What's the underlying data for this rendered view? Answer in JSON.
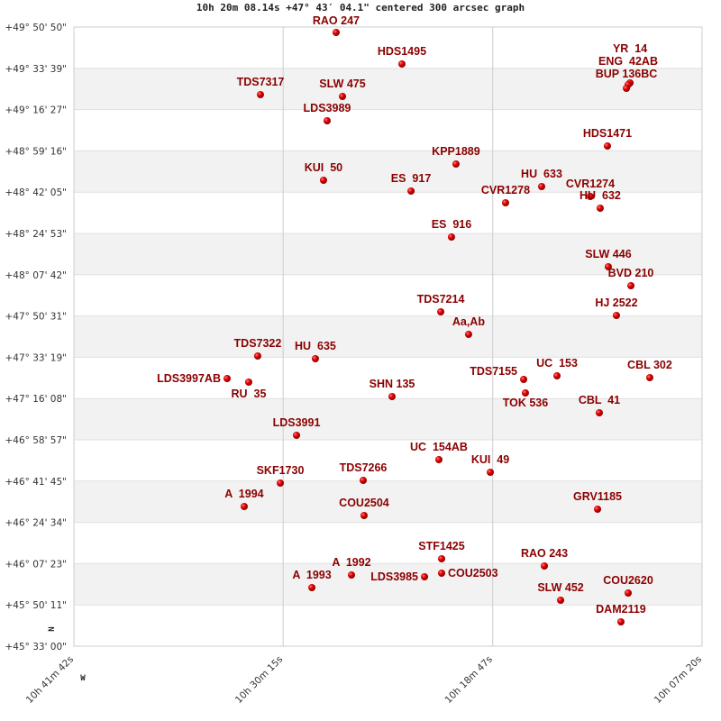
{
  "chart_data": {
    "type": "scatter",
    "title": "10h 20m 08.14s +47° 43′ 04.1\" centered 300 arcsec graph",
    "x_axis": {
      "quantity": "right ascension (hours)",
      "range": [
        10.695,
        10.1222
      ],
      "reversed": true,
      "ticks": [
        {
          "value": 10.695,
          "label": "10h 41m 42s"
        },
        {
          "value": 10.5042,
          "label": "10h 30m 15s"
        },
        {
          "value": 10.3131,
          "label": "10h 18m 47s"
        },
        {
          "value": 10.1222,
          "label": "10h 07m 20s"
        }
      ]
    },
    "y_axis": {
      "quantity": "declination (degrees)",
      "range": [
        45.55,
        49.8472
      ],
      "ticks": [
        "+49° 50' 50\"",
        "+49° 33' 39\"",
        "+49° 16' 27\"",
        "+48° 59' 16\"",
        "+48° 42' 05\"",
        "+48° 24' 53\"",
        "+48° 07' 42\"",
        "+47° 50' 31\"",
        "+47° 33' 19\"",
        "+47° 16' 08\"",
        "+46° 58' 57\"",
        "+46° 41' 45\"",
        "+46° 24' 34\"",
        "+46° 07' 23\"",
        "+45° 50' 11\"",
        "+45° 33' 00\""
      ]
    },
    "grid": true,
    "alternating_bands": true,
    "orientation_marks": {
      "north": "N",
      "west": "W"
    },
    "colors": {
      "label": "#8b0000",
      "marker": "#dd0000",
      "band": "#f2f2f2",
      "grid": "#cccccc"
    },
    "points": [
      {
        "name": "RAO 247",
        "ra": 10.4559,
        "dec": 49.8097
      },
      {
        "name": "HDS1495",
        "ra": 10.3959,
        "dec": 49.5907
      },
      {
        "name": "TDS7317",
        "ra": 10.5249,
        "dec": 49.3781
      },
      {
        "name": "SLW 475",
        "ra": 10.4501,
        "dec": 49.3656
      },
      {
        "name": "LDS3989",
        "ra": 10.4641,
        "dec": 49.1967
      },
      {
        "name": "YR  14",
        "ra": 10.1879,
        "dec": 49.4594
      },
      {
        "name": "ENG  42AB",
        "ra": 10.1896,
        "dec": 49.4469
      },
      {
        "name": "BUP 136BC",
        "ra": 10.1912,
        "dec": 49.4218
      },
      {
        "name": "HDS1471",
        "ra": 10.2085,
        "dec": 49.0215
      },
      {
        "name": "KPP1889",
        "ra": 10.3466,
        "dec": 48.8964
      },
      {
        "name": "KUI  50",
        "ra": 10.4674,
        "dec": 48.7838
      },
      {
        "name": "ES  917",
        "ra": 10.3876,
        "dec": 48.7088
      },
      {
        "name": "HU  633",
        "ra": 10.2685,
        "dec": 48.7401
      },
      {
        "name": "CVR1274",
        "ra": 10.2241,
        "dec": 48.6712
      },
      {
        "name": "HU  632",
        "ra": 10.2151,
        "dec": 48.5899
      },
      {
        "name": "CVR1278",
        "ra": 10.3014,
        "dec": 48.6275
      },
      {
        "name": "ES  916",
        "ra": 10.3507,
        "dec": 48.3898
      },
      {
        "name": "SLW 446",
        "ra": 10.2077,
        "dec": 48.1834
      },
      {
        "name": "BVD 210",
        "ra": 10.1871,
        "dec": 48.052
      },
      {
        "name": "TDS7214",
        "ra": 10.3605,
        "dec": 47.8706
      },
      {
        "name": "HJ 2522",
        "ra": 10.2003,
        "dec": 47.8456
      },
      {
        "name": "Aa,Ab",
        "ra": 10.3351,
        "dec": 47.7142
      },
      {
        "name": "TDS7322",
        "ra": 10.5274,
        "dec": 47.5641
      },
      {
        "name": "HU  635",
        "ra": 10.4748,
        "dec": 47.5453
      },
      {
        "name": "LDS3997AB",
        "ra": 10.5553,
        "dec": 47.4077
      },
      {
        "name": "RU  35",
        "ra": 10.5356,
        "dec": 47.3827
      },
      {
        "name": "SHN 135",
        "ra": 10.4049,
        "dec": 47.2826
      },
      {
        "name": "TDS7155",
        "ra": 10.2849,
        "dec": 47.4015
      },
      {
        "name": "UC  153",
        "ra": 10.2545,
        "dec": 47.4265
      },
      {
        "name": "TOK 536",
        "ra": 10.2833,
        "dec": 47.3077
      },
      {
        "name": "CBL 302",
        "ra": 10.1699,
        "dec": 47.414
      },
      {
        "name": "CBL  41",
        "ra": 10.2159,
        "dec": 47.17
      },
      {
        "name": "LDS3991",
        "ra": 10.492,
        "dec": 47.0137
      },
      {
        "name": "UC  154AB",
        "ra": 10.3622,
        "dec": 46.8448
      },
      {
        "name": "KUI  49",
        "ra": 10.3153,
        "dec": 46.7572
      },
      {
        "name": "SKF1730",
        "ra": 10.5068,
        "dec": 46.6822
      },
      {
        "name": "TDS7266",
        "ra": 10.4312,
        "dec": 46.7009
      },
      {
        "name": "A  1994",
        "ra": 10.5397,
        "dec": 46.5195
      },
      {
        "name": "COU2504",
        "ra": 10.4304,
        "dec": 46.457
      },
      {
        "name": "GRV1185",
        "ra": 10.2175,
        "dec": 46.5008
      },
      {
        "name": "STF1425",
        "ra": 10.3597,
        "dec": 46.1567
      },
      {
        "name": "COU2503",
        "ra": 10.3597,
        "dec": 46.0567
      },
      {
        "name": "LDS3985",
        "ra": 10.3753,
        "dec": 46.0316
      },
      {
        "name": "RAO 243",
        "ra": 10.266,
        "dec": 46.1067
      },
      {
        "name": "A  1992",
        "ra": 10.4419,
        "dec": 46.0441
      },
      {
        "name": "A  1993",
        "ra": 10.478,
        "dec": 45.9566
      },
      {
        "name": "SLW 452",
        "ra": 10.2512,
        "dec": 45.869
      },
      {
        "name": "COU2620",
        "ra": 10.1896,
        "dec": 45.919
      },
      {
        "name": "DAM2119",
        "ra": 10.1962,
        "dec": 45.7189
      }
    ]
  }
}
